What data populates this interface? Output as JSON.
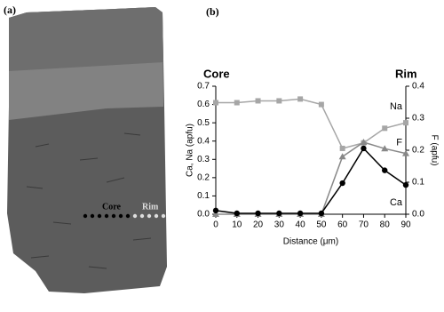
{
  "panel_a": {
    "label": "(a)",
    "core": "Core",
    "rim": "Rim"
  },
  "chart_data": {
    "type": "line",
    "panel_label": "(b)",
    "left_title": "Core",
    "right_title": "Rim",
    "x_label": "Distance (μm)",
    "y_label": "Ca, Na (apfu)",
    "y2_label": "F (apfu)",
    "x": [
      0,
      10,
      20,
      30,
      40,
      50,
      60,
      70,
      80,
      90
    ],
    "xlim": [
      0,
      90
    ],
    "xticks": [
      0,
      10,
      20,
      30,
      40,
      50,
      60,
      70,
      80,
      90
    ],
    "ylim": [
      0,
      0.7
    ],
    "yticks": [
      {
        "value": 0,
        "label": "0.0"
      },
      0.1,
      0.2,
      0.3,
      0.4,
      0.5,
      0.6,
      0.7
    ],
    "y2lim": [
      0,
      0.4
    ],
    "y2ticks": [
      {
        "value": 0,
        "label": "0.0"
      },
      0.1,
      0.2,
      0.3,
      0.4
    ],
    "series": [
      {
        "name": "Na",
        "color": "#a6a6a6",
        "marker": "square",
        "values": [
          0.61,
          0.61,
          0.62,
          0.62,
          0.63,
          0.6,
          0.36,
          0.39,
          0.47,
          0.5
        ]
      },
      {
        "name": "F",
        "color": "#888888",
        "marker": "triangle",
        "axis": "y2",
        "values": [
          0,
          0,
          0,
          0,
          0,
          0,
          0.18,
          0.225,
          0.205,
          0.19
        ]
      },
      {
        "name": "Ca",
        "color": "#000000",
        "marker": "circle",
        "values": [
          0.02,
          0.005,
          0.005,
          0.005,
          0.005,
          0.005,
          0.17,
          0.36,
          0.24,
          0.16
        ]
      }
    ]
  }
}
